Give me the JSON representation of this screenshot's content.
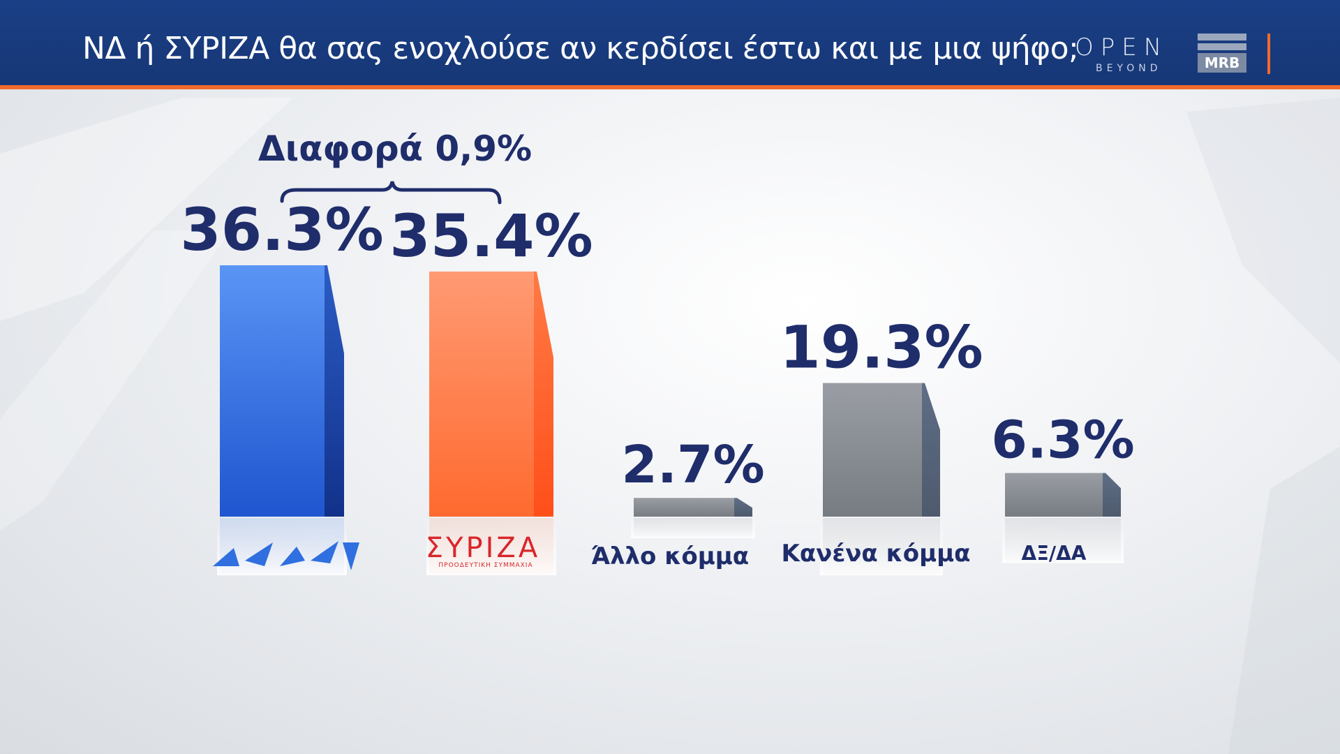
{
  "header": {
    "title": "ΝΔ  ή ΣΥΡΙΖΑ θα σας ενοχλούσε αν κερδίσει έστω και με μια ψήφο;",
    "brand_open": "OPEN",
    "brand_open_sub": "BEYOND",
    "brand_mrb": "MRB"
  },
  "annotation": {
    "difference_label": "Διαφορά 0,9%"
  },
  "colors": {
    "header_bg": "#163776",
    "accent_orange": "#f26b2c",
    "nd_blue": "#2f6fe0",
    "syriza_orange": "#ff6a2f",
    "gray": "#80858c",
    "text_navy": "#1f2d6b"
  },
  "chart_data": {
    "type": "bar",
    "title": "ΝΔ  ή ΣΥΡΙΖΑ θα σας ενοχλούσε αν κερδίσει έστω και με μια ψήφο;",
    "categories": [
      "ΝΔ",
      "ΣΥΡΙΖΑ",
      "Άλλο κόμμα",
      "Κανένα κόμμα",
      "ΔΞ/ΔΑ"
    ],
    "values": [
      36.3,
      35.4,
      2.7,
      19.3,
      6.3
    ],
    "value_labels": [
      "36.3%",
      "35.4%",
      "2.7%",
      "19.3%",
      "6.3%"
    ],
    "category_labels": [
      "",
      "ΣΥΡΙΖΑ",
      "Άλλο κόμμα",
      "Κανένα κόμμα",
      "ΔΞ/ΔΑ"
    ],
    "syriza_logo_sub": "ΠΡΟΟΔΕΥΤΙΚΗ ΣΥΜΜΑΧΙΑ",
    "bar_colors": [
      "#2f6fe0",
      "#ff6a2f",
      "#80858c",
      "#80858c",
      "#80858c"
    ],
    "xlabel": "",
    "ylabel": "",
    "ylim": [
      0,
      40
    ],
    "grid": false,
    "legend": "none"
  }
}
